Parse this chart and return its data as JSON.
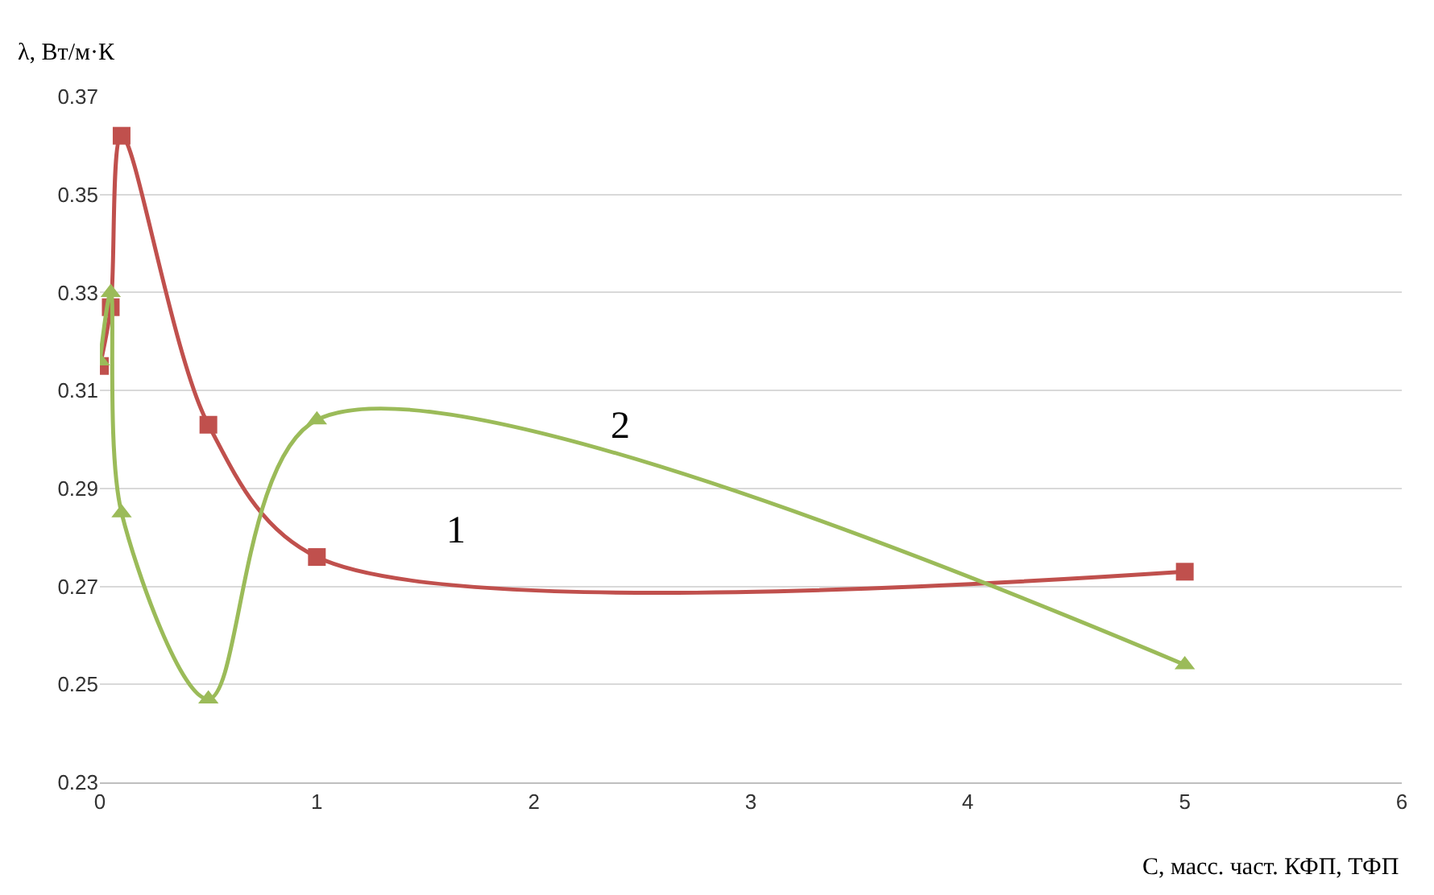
{
  "chart_data": {
    "type": "line",
    "xlabel": "C, масс. част. КФП, ТФП",
    "ylabel": "λ, Вт/м·К",
    "x": [
      0,
      0.05,
      0.1,
      0.5,
      1,
      5
    ],
    "series": [
      {
        "name": "1",
        "color": "#c0504d",
        "marker": "square",
        "values": [
          0.315,
          0.327,
          0.362,
          0.303,
          0.276,
          0.273
        ]
      },
      {
        "name": "2",
        "color": "#9bbb59",
        "marker": "triangle",
        "values": [
          0.316,
          0.33,
          0.285,
          0.247,
          0.304,
          0.254
        ]
      }
    ],
    "xlim": [
      0,
      6
    ],
    "xticks": [
      0,
      1,
      2,
      3,
      4,
      5,
      6
    ],
    "ylim": [
      0.23,
      0.37
    ],
    "yticks": [
      0.23,
      0.25,
      0.27,
      0.29,
      0.31,
      0.33,
      0.35,
      0.37
    ],
    "grid": "y",
    "legend": false
  }
}
